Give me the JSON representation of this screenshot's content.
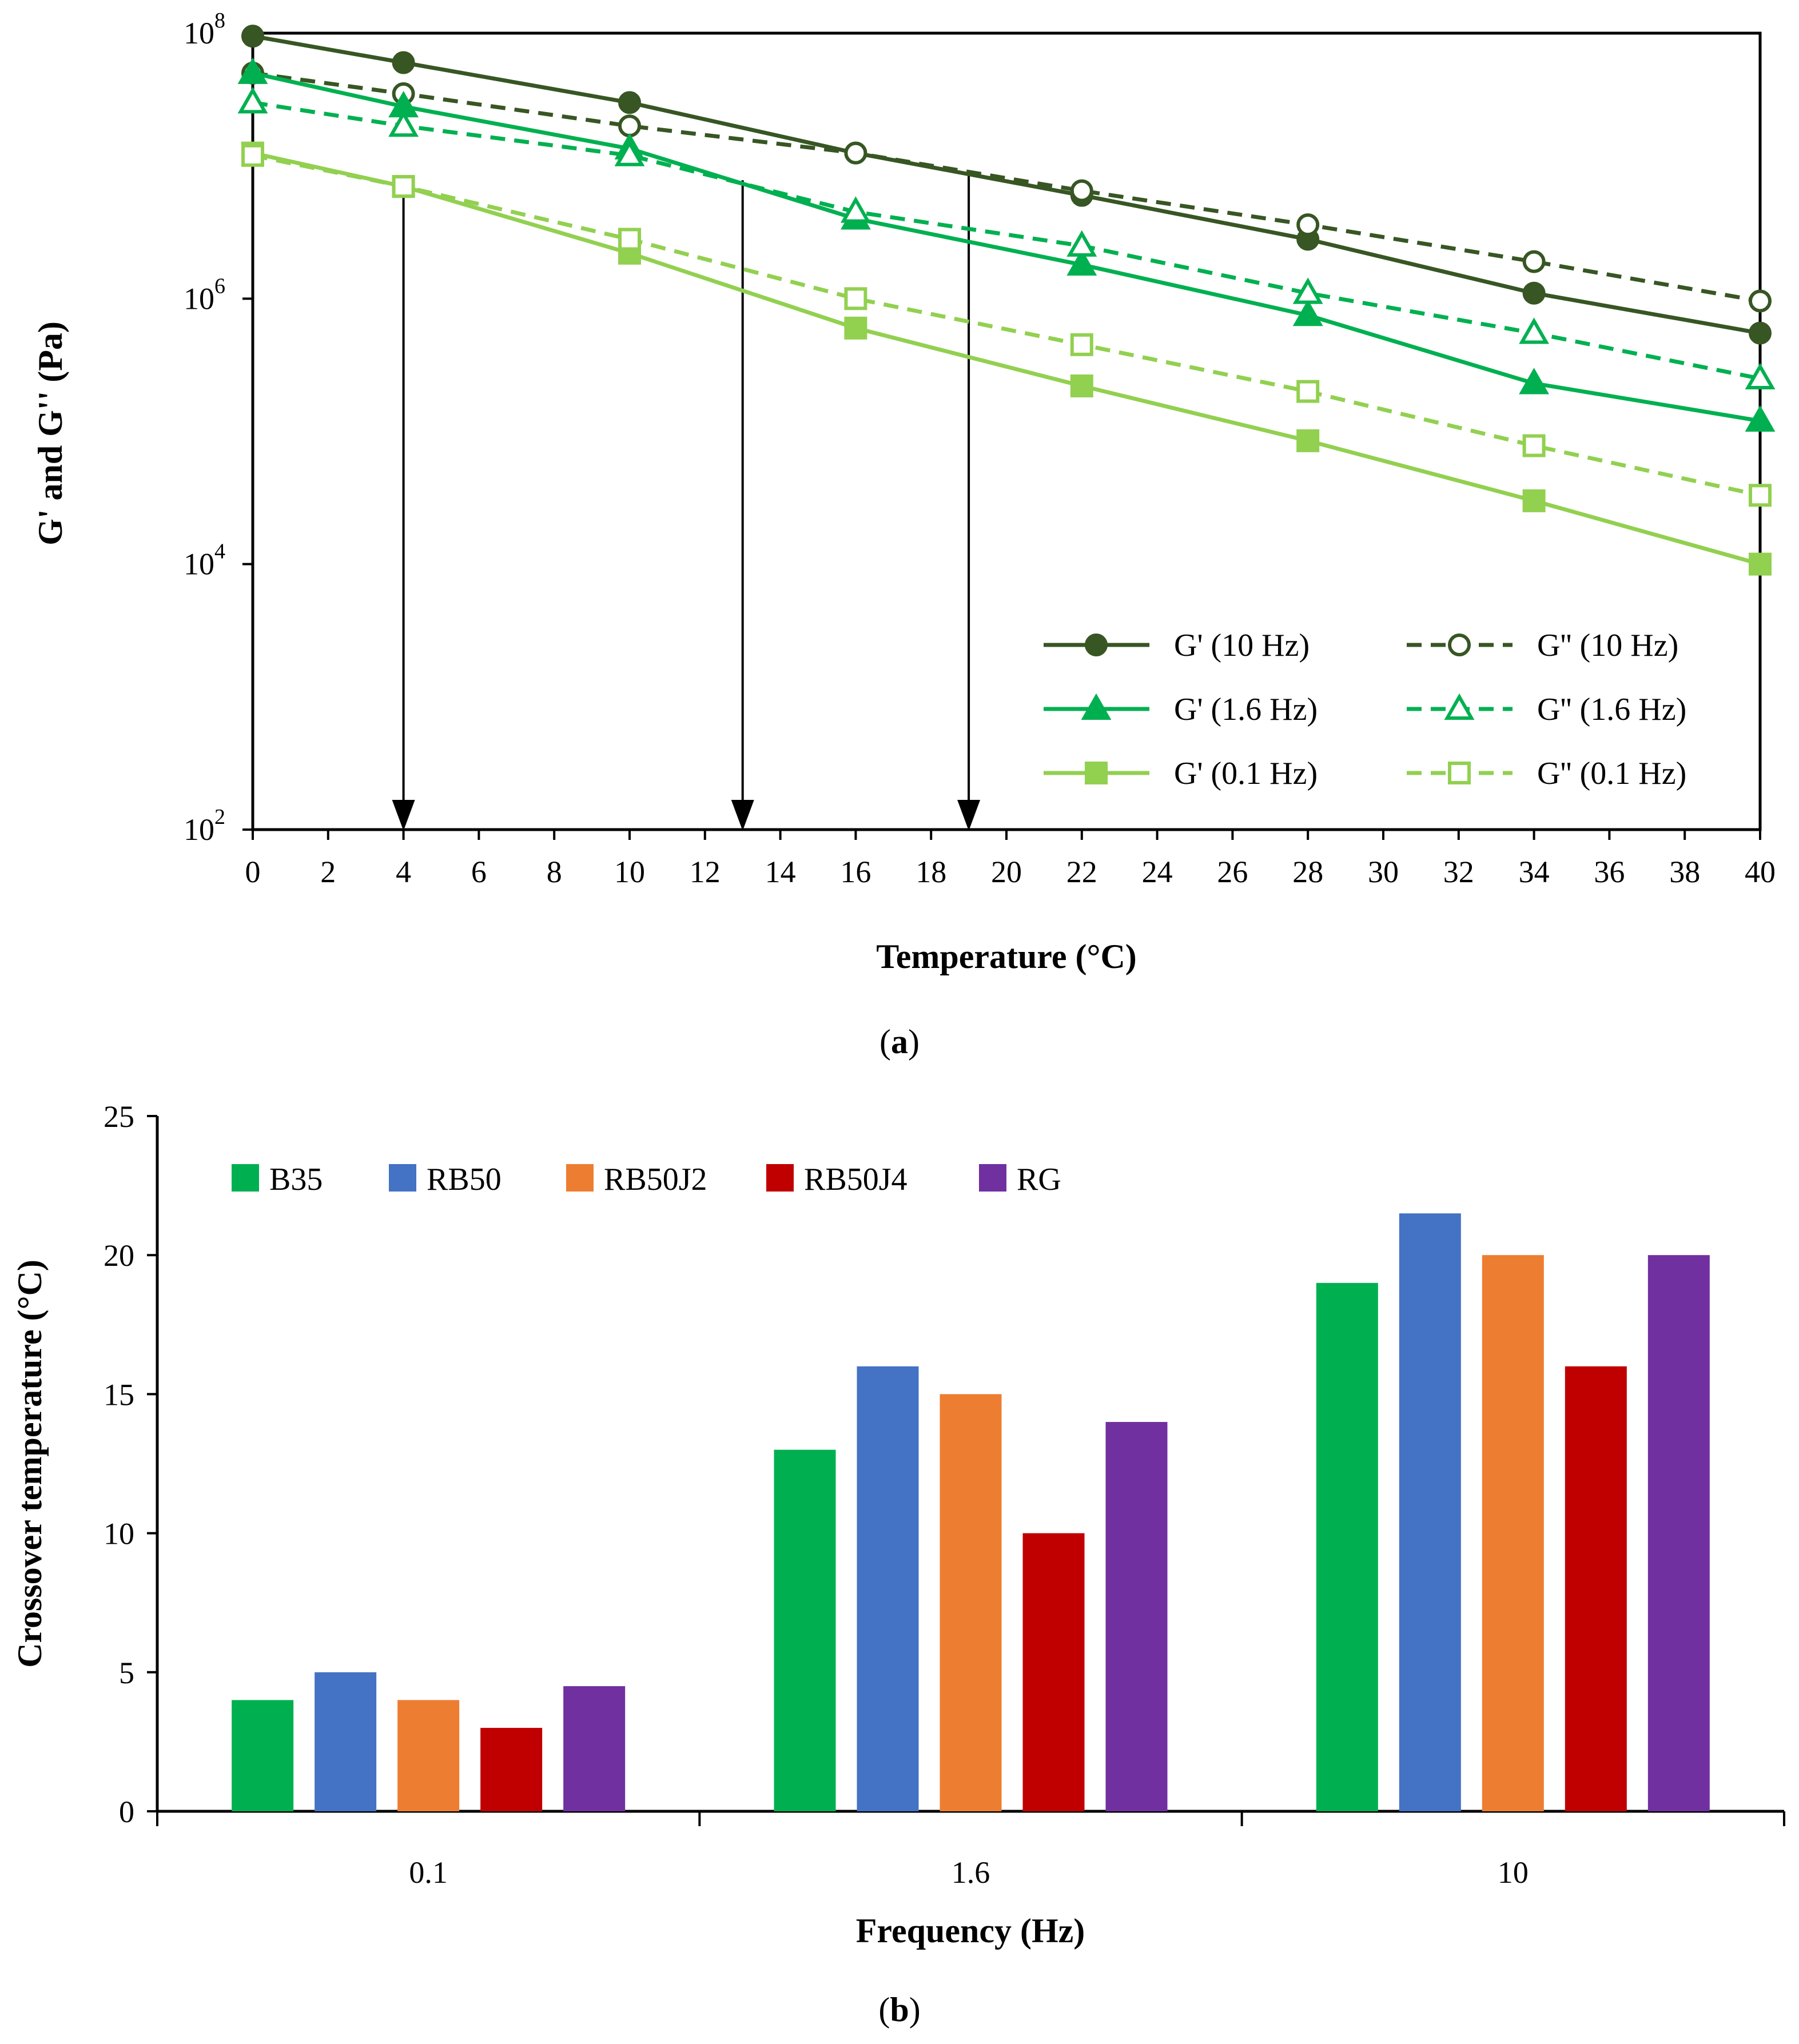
{
  "chart_data": [
    {
      "type": "line",
      "title": "",
      "caption_label": "a",
      "xlabel": "Temperature (°C)",
      "ylabel": "G' and G'' (Pa)",
      "yscale": "log",
      "xlim": [
        0,
        40
      ],
      "ylim": [
        100,
        100000000
      ],
      "x_ticks": [
        "0",
        "2",
        "4",
        "6",
        "8",
        "10",
        "12",
        "14",
        "16",
        "18",
        "20",
        "22",
        "24",
        "26",
        "28",
        "30",
        "32",
        "34",
        "36",
        "38",
        "40"
      ],
      "y_ticks": [
        {
          "value": 100,
          "base": "10",
          "exp": "2"
        },
        {
          "value": 10000,
          "base": "10",
          "exp": "4"
        },
        {
          "value": 1000000,
          "base": "10",
          "exp": "6"
        },
        {
          "value": 100000000,
          "base": "10",
          "exp": "8"
        }
      ],
      "x": [
        0,
        4,
        10,
        16,
        22,
        28,
        34,
        40
      ],
      "series": [
        {
          "name": "G' (10 Hz)",
          "color": "#375623",
          "marker": "circle",
          "filled": true,
          "dashed": false,
          "values": [
            95000000,
            60000000,
            30000000,
            12500000,
            6000000,
            2800000,
            1100000,
            550000
          ]
        },
        {
          "name": "G'' (10 Hz)",
          "color": "#375623",
          "marker": "circle",
          "filled": false,
          "dashed": true,
          "values": [
            50000000,
            35000000,
            20000000,
            12500000,
            6500000,
            3600000,
            1900000,
            960000
          ]
        },
        {
          "name": "G' (1.6 Hz)",
          "color": "#00B050",
          "marker": "triangle",
          "filled": true,
          "dashed": false,
          "values": [
            50000000,
            28000000,
            13500000,
            4000000,
            1800000,
            750000,
            230000,
            120000
          ]
        },
        {
          "name": "G'' (1.6 Hz)",
          "color": "#00B050",
          "marker": "triangle",
          "filled": false,
          "dashed": true,
          "values": [
            30000000,
            20000000,
            12000000,
            4500000,
            2500000,
            1100000,
            550000,
            250000
          ]
        },
        {
          "name": "G' (0.1 Hz)",
          "color": "#92D050",
          "marker": "square",
          "filled": true,
          "dashed": false,
          "values": [
            12500000,
            7000000,
            2200000,
            600000,
            220000,
            85000,
            30000,
            10000
          ]
        },
        {
          "name": "G'' (0.1 Hz)",
          "color": "#92D050",
          "marker": "square",
          "filled": false,
          "dashed": true,
          "values": [
            12000000,
            7000000,
            2800000,
            1000000,
            450000,
            200000,
            78000,
            33000
          ]
        }
      ],
      "legend_position": "bottom-right",
      "annotations": [
        {
          "kind": "vertical-arrow",
          "x": 4,
          "from_value": 7000000,
          "to_value": 100
        },
        {
          "kind": "vertical-arrow",
          "x": 13,
          "from_value": 7800000,
          "to_value": 100
        },
        {
          "kind": "vertical-arrow",
          "x": 19,
          "from_value": 9000000,
          "to_value": 100
        }
      ]
    },
    {
      "type": "bar",
      "title": "",
      "caption_label": "b",
      "xlabel": "Frequency (Hz)",
      "ylabel": "Crossover temperature (°C)",
      "ylim": [
        0,
        25
      ],
      "y_ticks": [
        "0",
        "5",
        "10",
        "15",
        "20",
        "25"
      ],
      "categories": [
        "0.1",
        "1.6",
        "10"
      ],
      "series": [
        {
          "name": "B35",
          "color": "#00B050",
          "values": [
            4,
            13,
            19
          ]
        },
        {
          "name": "RB50",
          "color": "#4472C4",
          "values": [
            5,
            16,
            21.5
          ]
        },
        {
          "name": "RB50J2",
          "color": "#ED7D31",
          "values": [
            4,
            15,
            20
          ]
        },
        {
          "name": "RB50J4",
          "color": "#C00000",
          "values": [
            3,
            10,
            16
          ]
        },
        {
          "name": "RG",
          "color": "#7030A0",
          "values": [
            4.5,
            14,
            20
          ]
        }
      ],
      "legend_position": "top-left"
    }
  ]
}
